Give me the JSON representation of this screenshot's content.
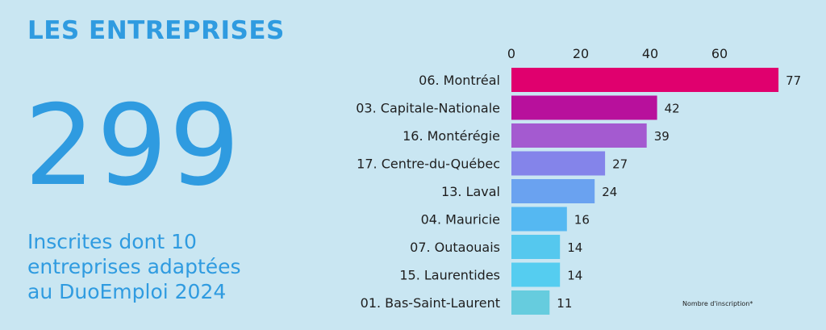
{
  "header": {
    "title": "LES ENTREPRISES"
  },
  "stat": {
    "value": "299",
    "caption_lines": [
      "Inscrites dont 10",
      "entreprises adaptées",
      "au DuoEmploi 2024"
    ]
  },
  "footnote": "Nombre d'inscription*",
  "colors": {
    "accent": "#2f9be0",
    "background": "#c9e6f2",
    "bars": [
      "#e0006e",
      "#b8109c",
      "#a45ad0",
      "#8484ea",
      "#6aa2f0",
      "#55b8f2",
      "#55c8ee",
      "#55cdf0",
      "#66ccde"
    ]
  },
  "chart_data": {
    "type": "bar",
    "orientation": "horizontal",
    "categories": [
      "06. Montréal",
      "03. Capitale-Nationale",
      "16. Montérégie",
      "17. Centre-du-Québec",
      "13. Laval",
      "04. Mauricie",
      "07. Outaouais",
      "15. Laurentides",
      "01. Bas-Saint-Laurent"
    ],
    "values": [
      77,
      42,
      39,
      27,
      24,
      16,
      14,
      14,
      11
    ],
    "value_labels": [
      "77",
      "42",
      "39",
      "27",
      "24",
      "16",
      "14",
      "14",
      "11"
    ],
    "ticks": [
      0,
      20,
      40,
      60
    ],
    "tick_labels": [
      "0",
      "20",
      "40",
      "60"
    ],
    "xlim": [
      0,
      77
    ],
    "axis_position": "top",
    "grid": false,
    "legend": "none"
  }
}
